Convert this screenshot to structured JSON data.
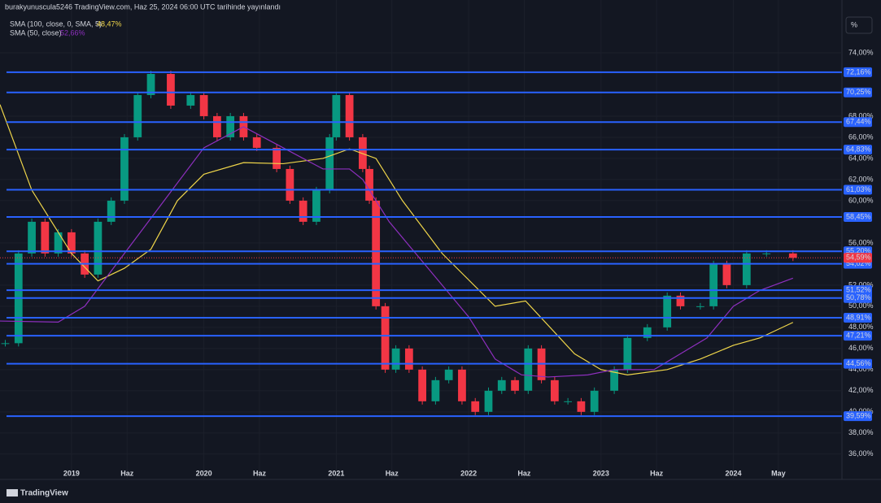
{
  "header": {
    "byline": "burakyunuscula5246 TradingView.com, Haz 25, 2024 06:00 UTC tarihinde yayınlandı",
    "unit_button": "%",
    "logo": "TradingView"
  },
  "chart_data": {
    "type": "candlestick",
    "legend": [
      {
        "name": "SMA (100, close, 0, SMA, 5)",
        "last": "48,47%",
        "color": "#f0d64a"
      },
      {
        "name": "SMA (50, close)",
        "last": "52,66%",
        "color": "#8e2fbf"
      }
    ],
    "xlim": [
      2018.46,
      2024.82
    ],
    "ylim": [
      33.6,
      79
    ],
    "xticks": [
      {
        "value": 2019,
        "label": "2019"
      },
      {
        "value": 2019.42,
        "label": "Haz"
      },
      {
        "value": 2020,
        "label": "2020"
      },
      {
        "value": 2020.42,
        "label": "Haz"
      },
      {
        "value": 2021,
        "label": "2021"
      },
      {
        "value": 2021.42,
        "label": "Haz"
      },
      {
        "value": 2022,
        "label": "2022"
      },
      {
        "value": 2022.42,
        "label": "Haz"
      },
      {
        "value": 2023,
        "label": "2023"
      },
      {
        "value": 2023.42,
        "label": "Haz"
      },
      {
        "value": 2024,
        "label": "2024"
      },
      {
        "value": 2024.34,
        "label": "May"
      }
    ],
    "yticks": [
      {
        "value": 74,
        "label": "74,00%"
      },
      {
        "value": 68,
        "label": "68,00%"
      },
      {
        "value": 66,
        "label": "66,00%"
      },
      {
        "value": 64,
        "label": "64,00%"
      },
      {
        "value": 62,
        "label": "62,00%"
      },
      {
        "value": 60,
        "label": "60,00%"
      },
      {
        "value": 56,
        "label": "56,00%"
      },
      {
        "value": 52,
        "label": "52,00%"
      },
      {
        "value": 50,
        "label": "50,00%"
      },
      {
        "value": 48,
        "label": "48,00%"
      },
      {
        "value": 46,
        "label": "46,00%"
      },
      {
        "value": 44,
        "label": "44,00%"
      },
      {
        "value": 42,
        "label": "42,00%"
      },
      {
        "value": 40,
        "label": "40,00%"
      },
      {
        "value": 38,
        "label": "38,00%"
      },
      {
        "value": 36,
        "label": "36,00%"
      }
    ],
    "levels": [
      {
        "value": 72.16,
        "label": "72,16%"
      },
      {
        "value": 70.25,
        "label": "70,25%"
      },
      {
        "value": 67.44,
        "label": "67,44%"
      },
      {
        "value": 64.83,
        "label": "64,83%"
      },
      {
        "value": 61.03,
        "label": "61,03%"
      },
      {
        "value": 58.45,
        "label": "58,45%"
      },
      {
        "value": 55.2,
        "label": "55,20%"
      },
      {
        "value": 54.02,
        "label": "54,02%"
      },
      {
        "value": 51.52,
        "label": "51,52%"
      },
      {
        "value": 50.78,
        "label": "50,78%"
      },
      {
        "value": 48.91,
        "label": "48,91%"
      },
      {
        "value": 47.21,
        "label": "47,21%"
      },
      {
        "value": 44.56,
        "label": "44,56%"
      },
      {
        "value": 39.59,
        "label": "39,59%"
      }
    ],
    "current": {
      "value": 54.59,
      "label": "54,59%"
    },
    "level_color": "#2962ff",
    "up_color": "#089981",
    "down_color": "#f23645",
    "x": [
      2018.5,
      2018.6,
      2018.7,
      2018.8,
      2018.9,
      2019.0,
      2019.1,
      2019.2,
      2019.3,
      2019.4,
      2019.5,
      2019.6,
      2019.75,
      2019.9,
      2020.0,
      2020.1,
      2020.2,
      2020.3,
      2020.4,
      2020.55,
      2020.65,
      2020.75,
      2020.85,
      2020.95,
      2021.0,
      2021.1,
      2021.2,
      2021.25,
      2021.3,
      2021.37,
      2021.45,
      2021.55,
      2021.65,
      2021.75,
      2021.85,
      2021.95,
      2022.05,
      2022.15,
      2022.25,
      2022.35,
      2022.45,
      2022.55,
      2022.65,
      2022.75,
      2022.85,
      2022.95,
      2023.1,
      2023.2,
      2023.35,
      2023.5,
      2023.6,
      2023.75,
      2023.85,
      2023.95,
      2024.1,
      2024.25,
      2024.45
    ],
    "close": [
      46.5,
      55,
      58,
      55,
      57,
      55,
      53,
      58,
      60,
      66,
      70,
      72,
      69,
      70,
      68,
      66,
      68,
      66,
      65,
      63,
      60,
      58,
      61,
      66,
      70,
      66,
      63,
      60,
      50,
      44,
      46,
      44,
      41,
      43,
      44,
      41,
      40,
      42,
      43,
      42,
      46,
      43,
      41,
      41,
      40,
      42,
      44,
      47,
      48,
      51,
      50,
      50,
      54,
      52,
      55,
      55,
      54.59
    ],
    "series": [
      {
        "name": "SMA (100, close, 0, SMA, 5)",
        "color": "#f0d64a",
        "x": [
          2018.46,
          2018.7,
          2019.0,
          2019.2,
          2019.4,
          2019.6,
          2019.8,
          2020.0,
          2020.3,
          2020.6,
          2020.9,
          2021.1,
          2021.3,
          2021.5,
          2021.8,
          2022.0,
          2022.2,
          2022.43,
          2022.8,
          2023.0,
          2023.2,
          2023.5,
          2023.75,
          2024.0,
          2024.2,
          2024.45
        ],
        "values": [
          69.1,
          61,
          55,
          52.4,
          53.6,
          55.4,
          60,
          62.5,
          63.6,
          63.5,
          64,
          64.9,
          64,
          60,
          55,
          52.5,
          50,
          50.5,
          45.5,
          44,
          43.5,
          44,
          45,
          46.3,
          47,
          48.47
        ]
      },
      {
        "name": "SMA (50, close)",
        "color": "#8e2fbf",
        "x": [
          2018.46,
          2018.9,
          2019.1,
          2019.4,
          2019.7,
          2020.0,
          2020.3,
          2020.6,
          2020.9,
          2021.1,
          2021.2,
          2021.4,
          2021.6,
          2021.8,
          2022.0,
          2022.2,
          2022.4,
          2022.6,
          2022.9,
          2023.1,
          2023.4,
          2023.6,
          2023.8,
          2024.0,
          2024.2,
          2024.45
        ],
        "values": [
          48.6,
          48.5,
          50,
          55,
          60,
          65,
          67,
          65,
          63,
          63,
          62,
          58,
          55,
          52,
          49,
          45,
          43.5,
          43.3,
          43.5,
          44,
          44,
          45.5,
          47,
          50,
          51.5,
          52.66
        ]
      }
    ]
  }
}
